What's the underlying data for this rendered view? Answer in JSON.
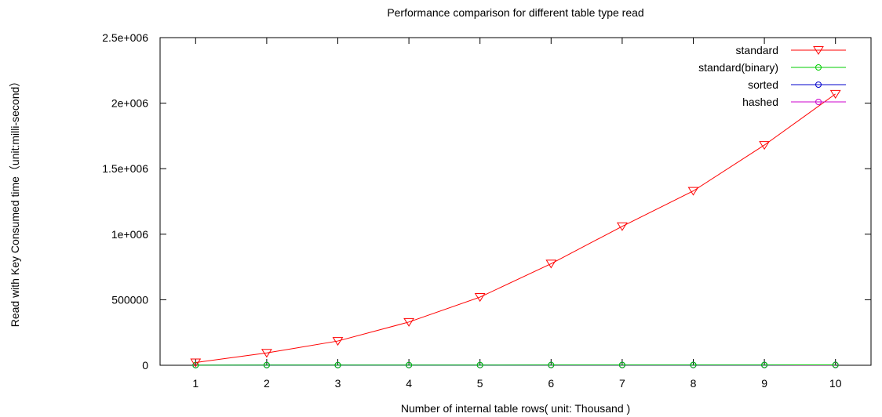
{
  "chart_data": {
    "type": "line",
    "title": "Performance comparison for different table type read",
    "xlabel": "Number of internal table rows( unit: Thousand )",
    "ylabel": "Read with Key Consumed time（unit:milli-second）",
    "x": [
      1,
      2,
      3,
      4,
      5,
      6,
      7,
      8,
      9,
      10
    ],
    "xlim": [
      0.5,
      10.5
    ],
    "ylim": [
      0,
      2500000
    ],
    "x_tick_labels": [
      "1",
      "2",
      "3",
      "4",
      "5",
      "6",
      "7",
      "8",
      "9",
      "10"
    ],
    "y_ticks": [
      0,
      500000,
      1000000,
      1500000,
      2000000,
      2500000
    ],
    "y_tick_labels": [
      "0",
      "500000",
      "1e+006",
      "1.5e+006",
      "2e+006",
      "2.5e+006"
    ],
    "grid": false,
    "legend_position": "top-right",
    "series": [
      {
        "name": "standard",
        "color": "#ff0000",
        "marker": "triangle-down",
        "values": [
          21000,
          94000,
          185000,
          330000,
          520000,
          775000,
          1060000,
          1330000,
          1680000,
          2070000
        ]
      },
      {
        "name": "standard(binary)",
        "color": "#00cc00",
        "marker": "circle",
        "values": [
          1000,
          1200,
          1400,
          1600,
          1800,
          2000,
          2200,
          2400,
          2600,
          2800
        ]
      },
      {
        "name": "sorted",
        "color": "#0000cc",
        "marker": "circle",
        "values": [
          1000,
          1200,
          1400,
          1600,
          1800,
          2000,
          2200,
          2400,
          2600,
          2800
        ]
      },
      {
        "name": "hashed",
        "color": "#cc00cc",
        "marker": "circle",
        "values": [
          1000,
          1000,
          1000,
          1000,
          1000,
          1000,
          1000,
          1000,
          1000,
          1000
        ]
      }
    ]
  }
}
